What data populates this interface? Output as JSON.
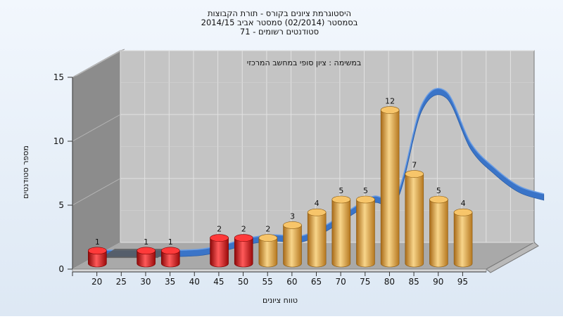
{
  "chart_data": {
    "type": "bar",
    "title_lines": [
      "היסטוגרמת ציונים בקורס - תורת הקבוצות",
      "בסמסטר  (02/2014)  סמסטר אביב 2014/15",
      "סטודנטים רשומים - 71"
    ],
    "annotation": "במשימה : ציון סופי במחשב המרכזי",
    "xlabel": "טווח ציונים",
    "ylabel": "מספר סטודנטים",
    "ylim": [
      0,
      15
    ],
    "y_ticks": [
      "0",
      "5",
      "10",
      "15"
    ],
    "x_ticks": [
      "20",
      "25",
      "30",
      "35",
      "40",
      "45",
      "50",
      "55",
      "60",
      "65",
      "70",
      "75",
      "80",
      "85",
      "90",
      "95"
    ],
    "grid": true,
    "legend": "none",
    "bars": [
      {
        "range": "15-20",
        "value": 1,
        "label": "1",
        "color": "red"
      },
      {
        "range": "25-30",
        "value": 1,
        "label": "1",
        "color": "red"
      },
      {
        "range": "30-35",
        "value": 1,
        "label": "1",
        "color": "red"
      },
      {
        "range": "40-45",
        "value": 2,
        "label": "2",
        "color": "red"
      },
      {
        "range": "45-50",
        "value": 2,
        "label": "2",
        "color": "red"
      },
      {
        "range": "50-55",
        "value": 2,
        "label": "2",
        "color": "gold"
      },
      {
        "range": "55-60",
        "value": 3,
        "label": "3",
        "color": "gold"
      },
      {
        "range": "60-65",
        "value": 4,
        "label": "4",
        "color": "gold"
      },
      {
        "range": "65-70",
        "value": 5,
        "label": "5",
        "color": "gold"
      },
      {
        "range": "70-75",
        "value": 5,
        "label": "5",
        "color": "gold"
      },
      {
        "range": "75-80",
        "value": 12,
        "label": "12",
        "color": "gold"
      },
      {
        "range": "80-85",
        "value": 7,
        "label": "7",
        "color": "gold"
      },
      {
        "range": "85-90",
        "value": 5,
        "label": "5",
        "color": "gold"
      },
      {
        "range": "90-95",
        "value": 4,
        "label": "4",
        "color": "gold"
      }
    ],
    "curve_series": [
      {
        "x": 15,
        "y": 0.6
      },
      {
        "x": 20,
        "y": 0.6
      },
      {
        "x": 25,
        "y": 0.6
      },
      {
        "x": 30,
        "y": 0.6
      },
      {
        "x": 35,
        "y": 0.7
      },
      {
        "x": 40,
        "y": 1.1
      },
      {
        "x": 45,
        "y": 1.6
      },
      {
        "x": 50,
        "y": 1.8
      },
      {
        "x": 55,
        "y": 1.7
      },
      {
        "x": 60,
        "y": 2.5
      },
      {
        "x": 65,
        "y": 3.7
      },
      {
        "x": 70,
        "y": 4.8
      },
      {
        "x": 75,
        "y": 5.1
      },
      {
        "x": 80,
        "y": 12.0
      },
      {
        "x": 85,
        "y": 13.0
      },
      {
        "x": 90,
        "y": 9.0
      },
      {
        "x": 95,
        "y": 7.0
      },
      {
        "x": 100,
        "y": 5.6
      },
      {
        "x": 105,
        "y": 5.0
      }
    ],
    "colors": {
      "red": "#e01818",
      "gold": "#e8a43c",
      "curve": "#3a74c8",
      "back_wall": "#c4c4c4",
      "left_wall": "#8c8c8c",
      "floor": "#a9a9a9"
    }
  }
}
